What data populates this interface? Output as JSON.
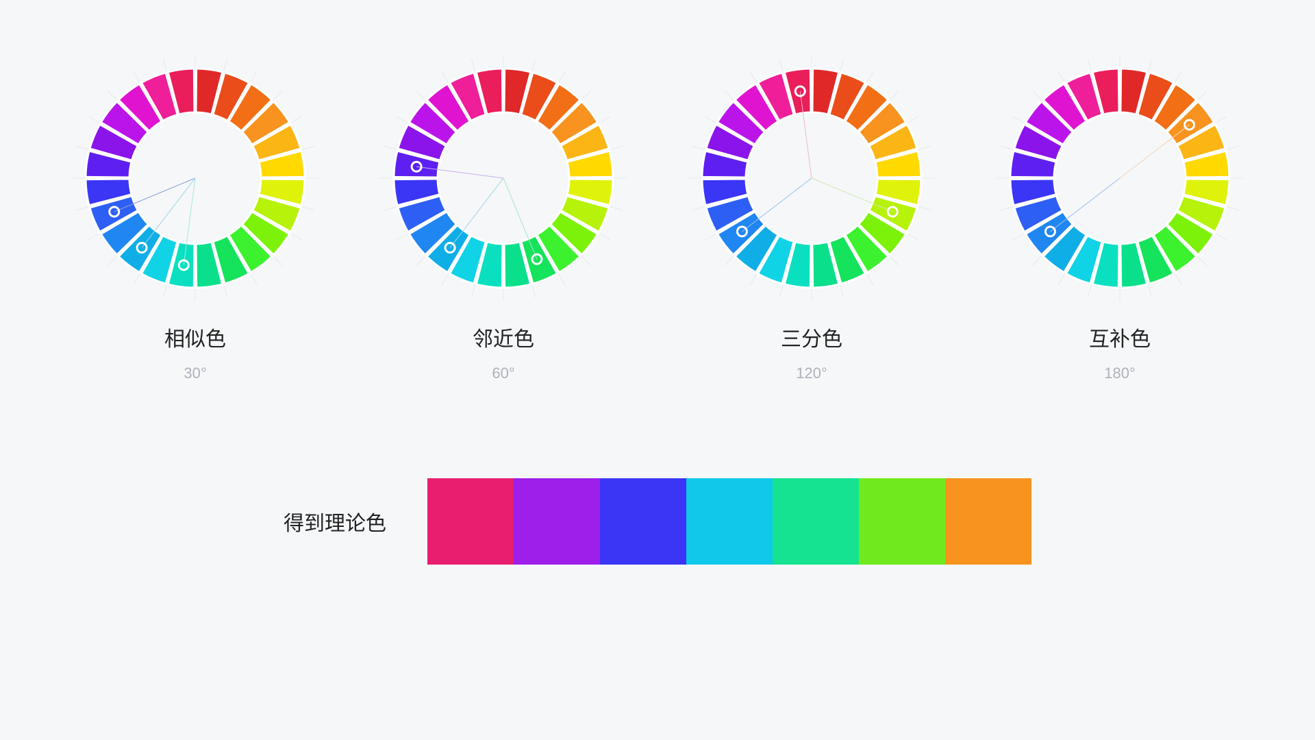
{
  "background_color": "#f5f7f9",
  "wheel": {
    "segments": 24,
    "outer_radius": 160,
    "inner_radius": 96,
    "segment_gap": 1.2,
    "stroke": "#ffffff",
    "stroke_width": 3,
    "marker_radius": 7,
    "marker_stroke": "#ffffff",
    "marker_stroke_width": 3,
    "marker_ring_radius": 128,
    "line_width": 1,
    "tick_length": 20,
    "tick_color": "#e6e8ea",
    "colors": [
      "#e02828",
      "#ea4d1a",
      "#f26f15",
      "#f7931e",
      "#fbb515",
      "#ffd900",
      "#dff20a",
      "#b6f20a",
      "#7cf20a",
      "#3cf22e",
      "#15e35b",
      "#0ae08c",
      "#0ae0c0",
      "#10d3e6",
      "#10aee6",
      "#1f86f2",
      "#2e5ff5",
      "#3b36f5",
      "#5e20f0",
      "#8a14ea",
      "#bb14ea",
      "#e014d0",
      "#ef1e99",
      "#ea1e5a"
    ]
  },
  "schemes": [
    {
      "title": "相似色",
      "subtitle": "30°",
      "markers": [
        16,
        14,
        12
      ],
      "lines": [
        {
          "to": 16,
          "color": "#8aa0d0"
        },
        {
          "to": 14,
          "color": "#9fd4e6"
        },
        {
          "to": 12,
          "color": "#a8e6e0"
        }
      ]
    },
    {
      "title": "邻近色",
      "subtitle": "60°",
      "markers": [
        18,
        14,
        10
      ],
      "lines": [
        {
          "to": 18,
          "color": "#c8b0e8"
        },
        {
          "to": 14,
          "color": "#9fd4e6"
        },
        {
          "to": 10,
          "color": "#a8e6c6"
        }
      ]
    },
    {
      "title": "三分色",
      "subtitle": "120°",
      "markers": [
        23,
        15,
        7
      ],
      "lines": [
        {
          "to": 23,
          "color": "#f2b8c8"
        },
        {
          "to": 15,
          "color": "#9cbef0"
        },
        {
          "to": 7,
          "color": "#cfeab0"
        }
      ]
    },
    {
      "title": "互补色",
      "subtitle": "180°",
      "markers": [
        3,
        15
      ],
      "lines": [
        {
          "to": 3,
          "color": "#f8d4b4"
        },
        {
          "to": 15,
          "color": "#9cbef0"
        }
      ]
    }
  ],
  "swatch_label": "得到理论色",
  "swatches": [
    "#ea1e6e",
    "#9e1eea",
    "#3b36f5",
    "#10c8ea",
    "#15e391",
    "#70ea1e",
    "#f7931e"
  ],
  "typography": {
    "title_fontsize": 30,
    "subtitle_fontsize": 22,
    "title_color": "#222222",
    "subtitle_color": "#aeb2b8"
  }
}
